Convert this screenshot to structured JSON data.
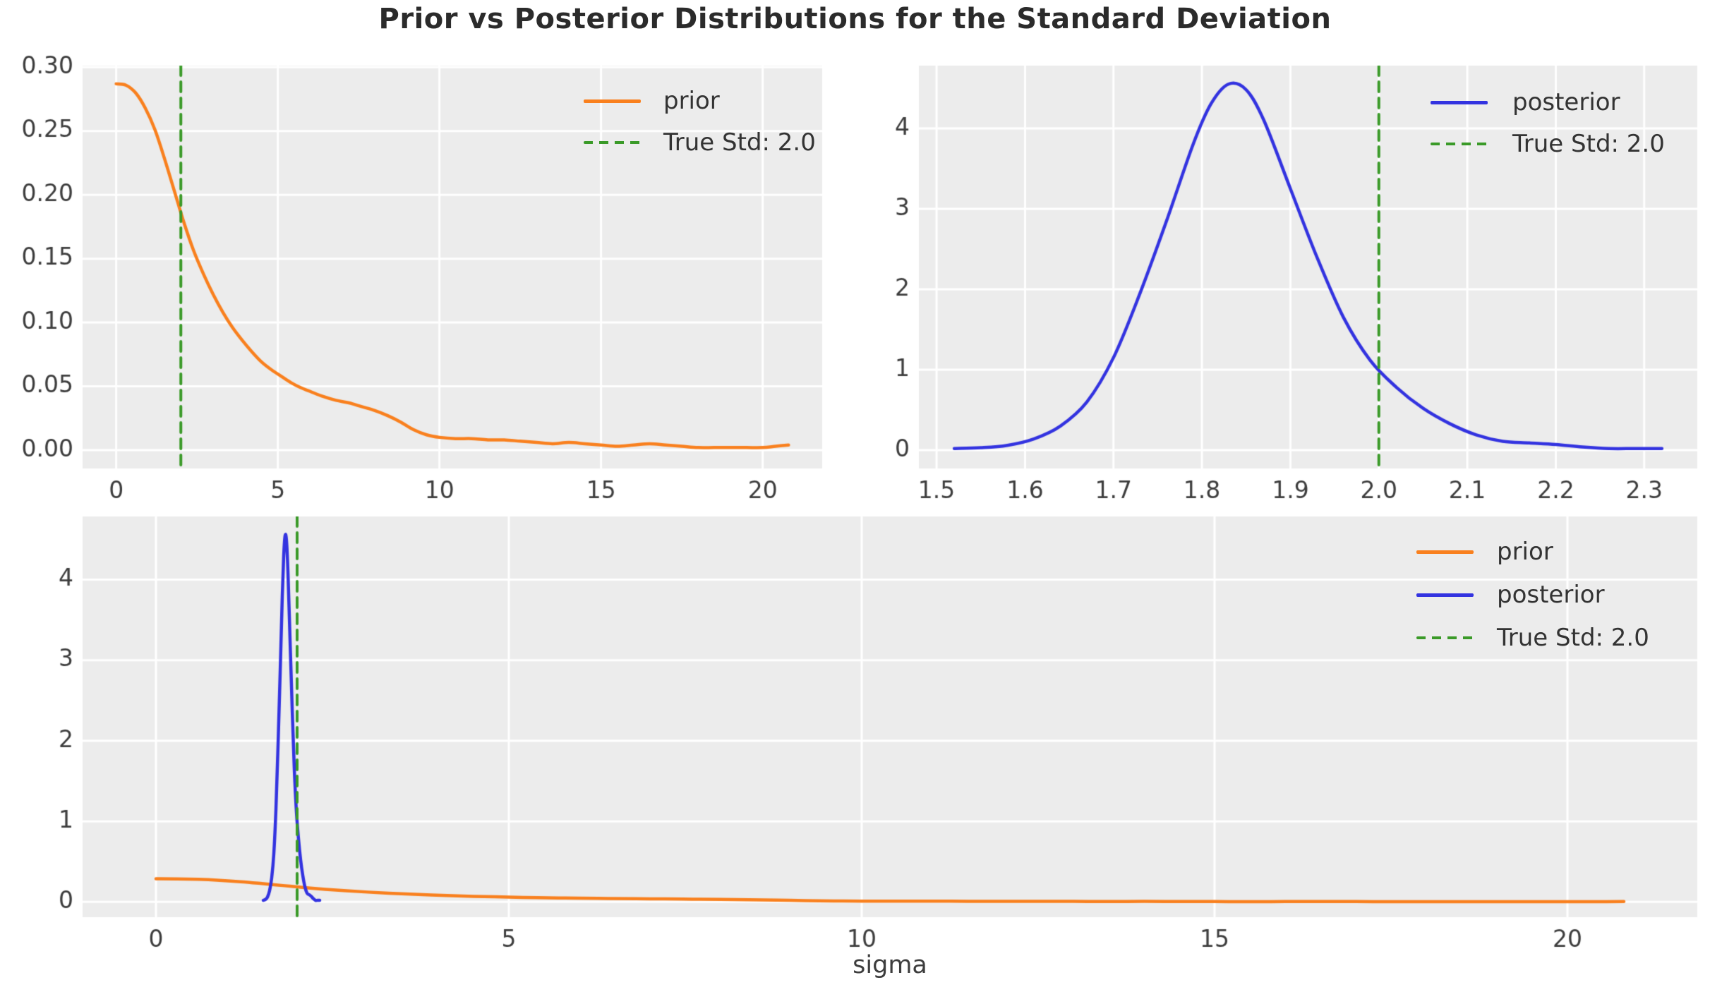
{
  "figure": {
    "title": "Prior vs Posterior Distributions for the Standard Deviation",
    "xlabel_bottom": "sigma",
    "background": "#ffffff",
    "plot_background": "#ececec",
    "grid_color": "#ffffff",
    "tick_color": "#3d3d3d",
    "legend_text_color": "#333333",
    "title_color": "#2b2b2b"
  },
  "colors": {
    "prior": "#f9801e",
    "posterior": "#3333e0",
    "true_std": "#3a9a28"
  },
  "series": {
    "prior": {
      "name": "prior",
      "color": "prior",
      "x": [
        0,
        0.3,
        0.6,
        0.9,
        1.2,
        1.5,
        1.8,
        2.1,
        2.4,
        2.7,
        3.0,
        3.3,
        3.6,
        3.9,
        4.2,
        4.5,
        4.8,
        5.1,
        5.4,
        5.7,
        6.0,
        6.4,
        6.8,
        7.2,
        7.6,
        8.0,
        8.4,
        8.8,
        9.2,
        9.6,
        10.0,
        10.5,
        11.0,
        11.5,
        12.0,
        12.5,
        13.0,
        13.5,
        14.0,
        14.5,
        15.0,
        15.5,
        16.0,
        16.5,
        17.0,
        17.5,
        18.0,
        18.5,
        19.0,
        19.5,
        20.0,
        20.4,
        20.8
      ],
      "y": [
        0.287,
        0.286,
        0.28,
        0.268,
        0.251,
        0.228,
        0.203,
        0.178,
        0.156,
        0.138,
        0.122,
        0.108,
        0.096,
        0.086,
        0.077,
        0.069,
        0.063,
        0.058,
        0.053,
        0.049,
        0.046,
        0.042,
        0.039,
        0.037,
        0.034,
        0.031,
        0.027,
        0.022,
        0.016,
        0.012,
        0.01,
        0.009,
        0.009,
        0.008,
        0.008,
        0.007,
        0.006,
        0.005,
        0.006,
        0.005,
        0.004,
        0.003,
        0.004,
        0.005,
        0.004,
        0.003,
        0.002,
        0.002,
        0.002,
        0.002,
        0.002,
        0.003,
        0.004
      ]
    },
    "posterior": {
      "name": "posterior",
      "color": "posterior",
      "x": [
        1.52,
        1.55,
        1.58,
        1.61,
        1.64,
        1.67,
        1.7,
        1.73,
        1.76,
        1.79,
        1.81,
        1.83,
        1.85,
        1.87,
        1.9,
        1.93,
        1.96,
        1.99,
        2.02,
        2.05,
        2.08,
        2.11,
        2.14,
        2.17,
        2.2,
        2.23,
        2.26,
        2.29,
        2.32
      ],
      "y": [
        0.02,
        0.03,
        0.06,
        0.14,
        0.3,
        0.6,
        1.15,
        1.95,
        2.85,
        3.8,
        4.3,
        4.55,
        4.48,
        4.1,
        3.25,
        2.4,
        1.65,
        1.12,
        0.78,
        0.52,
        0.33,
        0.19,
        0.11,
        0.09,
        0.07,
        0.04,
        0.02,
        0.02,
        0.02
      ]
    }
  },
  "chart_data": [
    {
      "id": "top_left",
      "type": "line",
      "grid": true,
      "legend_position": "upper right",
      "xlim": [
        -1.04,
        21.84
      ],
      "ylim": [
        -0.0144,
        0.3013
      ],
      "xticks": [
        {
          "v": 0,
          "t": "0"
        },
        {
          "v": 5,
          "t": "5"
        },
        {
          "v": 10,
          "t": "10"
        },
        {
          "v": 15,
          "t": "15"
        },
        {
          "v": 20,
          "t": "20"
        }
      ],
      "yticks": [
        {
          "v": 0,
          "t": "0.00"
        },
        {
          "v": 0.05,
          "t": "0.05"
        },
        {
          "v": 0.1,
          "t": "0.10"
        },
        {
          "v": 0.15,
          "t": "0.15"
        },
        {
          "v": 0.2,
          "t": "0.20"
        },
        {
          "v": 0.25,
          "t": "0.25"
        },
        {
          "v": 0.3,
          "t": "0.30"
        }
      ],
      "series_refs": [
        "prior"
      ],
      "vline": {
        "x": 2.0,
        "label": "True Std: 2.0",
        "color": "true_std",
        "style": "dashed"
      }
    },
    {
      "id": "top_right",
      "type": "line",
      "grid": true,
      "legend_position": "upper right",
      "xlim": [
        1.48,
        2.36
      ],
      "ylim": [
        -0.228,
        4.78
      ],
      "xticks": [
        {
          "v": 1.5,
          "t": "1.5"
        },
        {
          "v": 1.6,
          "t": "1.6"
        },
        {
          "v": 1.7,
          "t": "1.7"
        },
        {
          "v": 1.8,
          "t": "1.8"
        },
        {
          "v": 1.9,
          "t": "1.9"
        },
        {
          "v": 2.0,
          "t": "2.0"
        },
        {
          "v": 2.1,
          "t": "2.1"
        },
        {
          "v": 2.2,
          "t": "2.2"
        },
        {
          "v": 2.3,
          "t": "2.3"
        }
      ],
      "yticks": [
        {
          "v": 0,
          "t": "0"
        },
        {
          "v": 1,
          "t": "1"
        },
        {
          "v": 2,
          "t": "2"
        },
        {
          "v": 3,
          "t": "3"
        },
        {
          "v": 4,
          "t": "4"
        }
      ],
      "series_refs": [
        "posterior"
      ],
      "vline": {
        "x": 2.0,
        "label": "True Std: 2.0",
        "color": "true_std",
        "style": "dashed"
      }
    },
    {
      "id": "bottom",
      "type": "line",
      "grid": true,
      "legend_position": "upper right",
      "xlabel": "sigma",
      "xlim": [
        -1.04,
        21.84
      ],
      "ylim": [
        -0.19,
        4.785
      ],
      "xticks": [
        {
          "v": 0,
          "t": "0"
        },
        {
          "v": 5,
          "t": "5"
        },
        {
          "v": 10,
          "t": "10"
        },
        {
          "v": 15,
          "t": "15"
        },
        {
          "v": 20,
          "t": "20"
        }
      ],
      "yticks": [
        {
          "v": 0,
          "t": "0"
        },
        {
          "v": 1,
          "t": "1"
        },
        {
          "v": 2,
          "t": "2"
        },
        {
          "v": 3,
          "t": "3"
        },
        {
          "v": 4,
          "t": "4"
        }
      ],
      "series_refs": [
        "prior",
        "posterior"
      ],
      "vline": {
        "x": 2.0,
        "label": "True Std: 2.0",
        "color": "true_std",
        "style": "dashed"
      }
    }
  ],
  "legends": {
    "top_left": [
      {
        "label": "prior",
        "color": "prior",
        "dash": false
      },
      {
        "label": "True Std: 2.0",
        "color": "true_std",
        "dash": true
      }
    ],
    "top_right": [
      {
        "label": "posterior",
        "color": "posterior",
        "dash": false
      },
      {
        "label": "True Std: 2.0",
        "color": "true_std",
        "dash": true
      }
    ],
    "bottom": [
      {
        "label": "prior",
        "color": "prior",
        "dash": false
      },
      {
        "label": "posterior",
        "color": "posterior",
        "dash": false
      },
      {
        "label": "True Std: 2.0",
        "color": "true_std",
        "dash": true
      }
    ]
  }
}
